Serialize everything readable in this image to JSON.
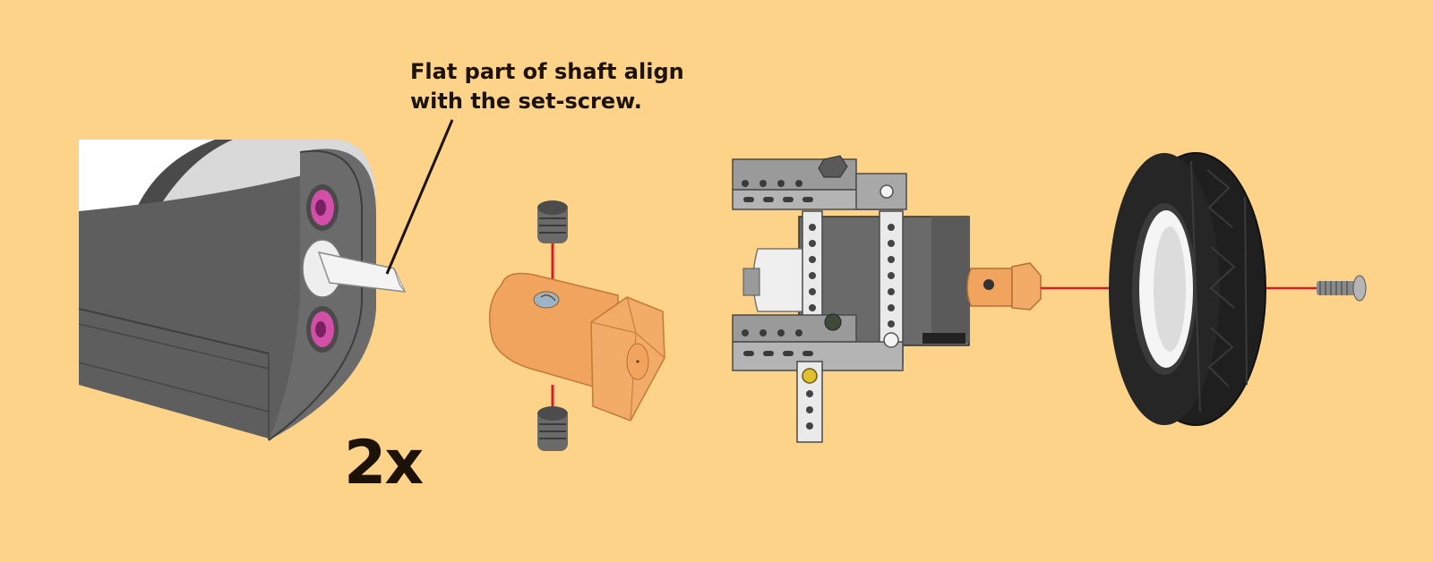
{
  "callout": {
    "line1": "Flat part of shaft align",
    "line2": "with the set-screw."
  },
  "quantity": "2x",
  "colors": {
    "background": "#fdd38a",
    "motor_body": "#5b5b5b",
    "coupler": "#f0a45e",
    "screw_head": "#d24fa8",
    "axle_line": "#d21f2a",
    "tire": "#1c1c1c",
    "frame": "#9a9a9a"
  },
  "icons": [
    "motor-icon",
    "shaft-icon",
    "set-screw-icon",
    "hex-coupler-icon",
    "chassis-icon",
    "wheel-icon",
    "bolt-icon"
  ]
}
